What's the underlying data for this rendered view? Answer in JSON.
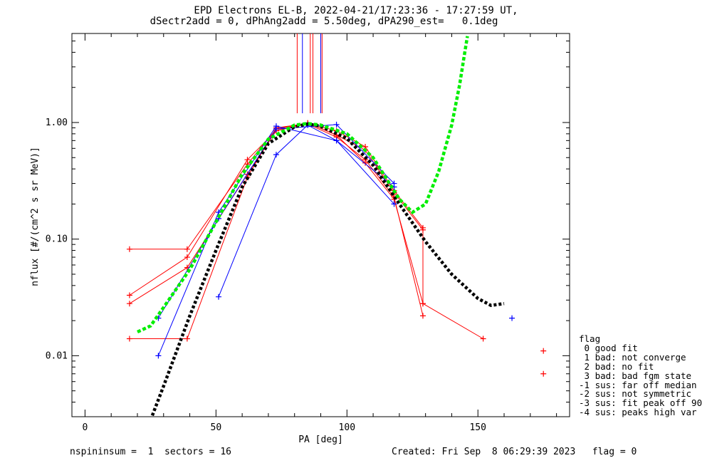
{
  "header": {
    "title_line1": "EPD Electrons EL-B, 2022-04-21/17:23:36 - 17:27:59 UT,",
    "title_line2": "dSectr2add = 0, dPhAng2add = 5.50deg, dPA290_est=   0.1deg"
  },
  "chart_data": {
    "type": "scatter",
    "xlabel": "PA [deg]",
    "ylabel": "nflux [#/(cm^2 s sr MeV)]",
    "xlim": [
      -5,
      185
    ],
    "ylim": [
      0.003,
      5.8
    ],
    "yscale": "log",
    "x_ticks": [
      0,
      50,
      100,
      150
    ],
    "y_ticks": [
      0.01,
      0.1,
      1.0
    ],
    "y_tick_labels": [
      "0.01",
      "0.10",
      "1.00"
    ],
    "series": [
      {
        "color": "#ff0000",
        "points": [
          [
            17,
            0.082
          ],
          [
            39,
            0.082
          ],
          [
            62,
            0.44
          ],
          [
            73,
            0.88
          ],
          [
            85,
            0.99
          ],
          [
            96,
            0.78
          ],
          [
            107,
            0.58
          ],
          [
            118,
            0.25
          ],
          [
            129,
            0.12
          ],
          [
            129,
            0.028
          ]
        ]
      },
      {
        "color": "#ff0000",
        "points": [
          [
            17,
            0.033
          ],
          [
            39,
            0.07
          ],
          [
            62,
            0.48
          ],
          [
            73,
            0.85
          ],
          [
            85,
            0.97
          ],
          [
            96,
            0.75
          ],
          [
            107,
            0.48
          ],
          [
            118,
            0.23
          ],
          [
            129,
            0.022
          ]
        ]
      },
      {
        "color": "#ff0000",
        "points": [
          [
            17,
            0.028
          ],
          [
            39,
            0.057
          ],
          [
            62,
            0.36
          ],
          [
            73,
            0.85
          ],
          [
            85,
            0.99
          ],
          [
            96,
            0.78
          ],
          [
            107,
            0.45
          ],
          [
            118,
            0.22
          ],
          [
            129,
            0.028
          ],
          [
            152,
            0.014
          ]
        ]
      },
      {
        "color": "#ff0000",
        "points": [
          [
            17,
            0.014
          ],
          [
            39,
            0.014
          ],
          [
            62,
            0.34
          ],
          [
            73,
            0.9
          ],
          [
            85,
            0.98
          ],
          [
            96,
            0.85
          ],
          [
            107,
            0.62
          ],
          [
            118,
            0.26
          ],
          [
            129,
            0.125
          ]
        ]
      },
      {
        "color": "#0000ff",
        "points": [
          [
            28,
            0.01
          ],
          [
            51,
            0.17
          ],
          [
            73,
            0.93
          ],
          [
            96,
            0.7
          ],
          [
            118,
            0.2
          ]
        ]
      },
      {
        "color": "#0000ff",
        "points": [
          [
            28,
            0.021
          ],
          [
            51,
            0.15
          ],
          [
            73,
            0.88
          ],
          [
            96,
            0.96
          ],
          [
            118,
            0.3
          ]
        ]
      },
      {
        "color": "#0000ff",
        "points": [
          [
            51,
            0.032
          ],
          [
            73,
            0.53
          ],
          [
            85,
            0.95
          ],
          [
            96,
            0.7
          ],
          [
            118,
            0.28
          ]
        ]
      }
    ],
    "extra_points": [
      {
        "color": "#0000ff",
        "x": 163,
        "y": 0.021
      },
      {
        "color": "#ff0000",
        "x": 175,
        "y": 0.011
      },
      {
        "color": "#ff0000",
        "x": 175,
        "y": 0.007
      }
    ],
    "fit_black": {
      "color": "#000000",
      "points": [
        [
          25,
          0.0028
        ],
        [
          30,
          0.0055
        ],
        [
          40,
          0.022
        ],
        [
          50,
          0.08
        ],
        [
          60,
          0.28
        ],
        [
          70,
          0.66
        ],
        [
          80,
          0.92
        ],
        [
          85,
          0.97
        ],
        [
          90,
          0.93
        ],
        [
          100,
          0.73
        ],
        [
          110,
          0.43
        ],
        [
          120,
          0.2
        ],
        [
          130,
          0.095
        ],
        [
          140,
          0.05
        ],
        [
          150,
          0.031
        ],
        [
          155,
          0.027
        ],
        [
          160,
          0.028
        ]
      ]
    },
    "fit_green": {
      "color": "#00ee00",
      "points": [
        [
          20,
          0.016
        ],
        [
          25,
          0.018
        ],
        [
          30,
          0.026
        ],
        [
          40,
          0.055
        ],
        [
          50,
          0.14
        ],
        [
          60,
          0.36
        ],
        [
          70,
          0.72
        ],
        [
          80,
          0.95
        ],
        [
          85,
          0.98
        ],
        [
          90,
          0.95
        ],
        [
          100,
          0.8
        ],
        [
          110,
          0.5
        ],
        [
          120,
          0.22
        ],
        [
          125,
          0.17
        ],
        [
          130,
          0.2
        ],
        [
          135,
          0.38
        ],
        [
          140,
          0.95
        ],
        [
          143,
          2.1
        ],
        [
          145,
          4.0
        ],
        [
          146,
          5.5
        ]
      ]
    },
    "peak_lines": [
      {
        "color": "#ff0000",
        "x": 81
      },
      {
        "color": "#0000ff",
        "x": 83
      },
      {
        "color": "#ff0000",
        "x": 86
      },
      {
        "color": "#ff0000",
        "x": 87
      },
      {
        "color": "#0000ff",
        "x": 90
      },
      {
        "color": "#ff0000",
        "x": 90.5
      }
    ]
  },
  "legend": {
    "title": "flag",
    "items": [
      " 0 good fit",
      " 1 bad: not converge",
      " 2 bad: no fit",
      " 3 bad: bad fgm state",
      "-1 sus: far off median",
      "-2 sus: not symmetric",
      "-3 sus: fit peak off 90",
      "-4 sus: peaks high var"
    ]
  },
  "footer": {
    "left": "nspininsum =  1  sectors = 16",
    "right": "Created: Fri Sep  8 06:29:39 2023   flag = 0"
  }
}
